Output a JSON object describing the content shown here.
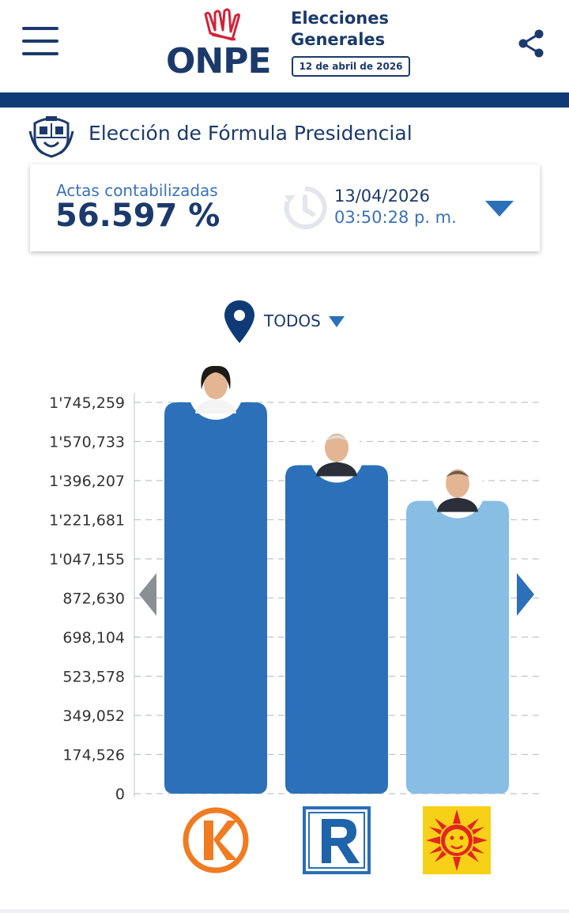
{
  "header": {
    "logo_text": "ONPE",
    "title_line1": "Elecciones",
    "title_line2": "Generales",
    "election_date": "12 de abril de 2026"
  },
  "page_title": "Elección de Fórmula Presidencial",
  "summary": {
    "label": "Actas contabilizadas",
    "value": "56.597 %",
    "date": "13/04/2026",
    "time": "03:50:28 p. m."
  },
  "filter": {
    "region": "TODOS"
  },
  "colors": {
    "navy": "#1b3a6b",
    "bar_primary": "#2b70b9",
    "bar_light": "#88bde4"
  },
  "chart_data": {
    "type": "bar",
    "categories": [
      "Fuerza Popular",
      "Renovación Popular",
      "Partido del Sol"
    ],
    "values": [
      1745259,
      1465000,
      1306000
    ],
    "ylim": [
      0,
      1745259
    ],
    "y_ticks": [
      0,
      174526,
      349052,
      523578,
      698104,
      872630,
      1047155,
      1221681,
      1396207,
      1570733,
      1745259
    ],
    "y_tick_labels": [
      "0",
      "174,526",
      "349,052",
      "523,578",
      "698,104",
      "872,630",
      "1'047,155",
      "1'221,681",
      "1'396,207",
      "1'570,733",
      "1'745,259"
    ],
    "grid": true,
    "bar_colors": [
      "#2b70b9",
      "#2b70b9",
      "#88bde4"
    ]
  }
}
